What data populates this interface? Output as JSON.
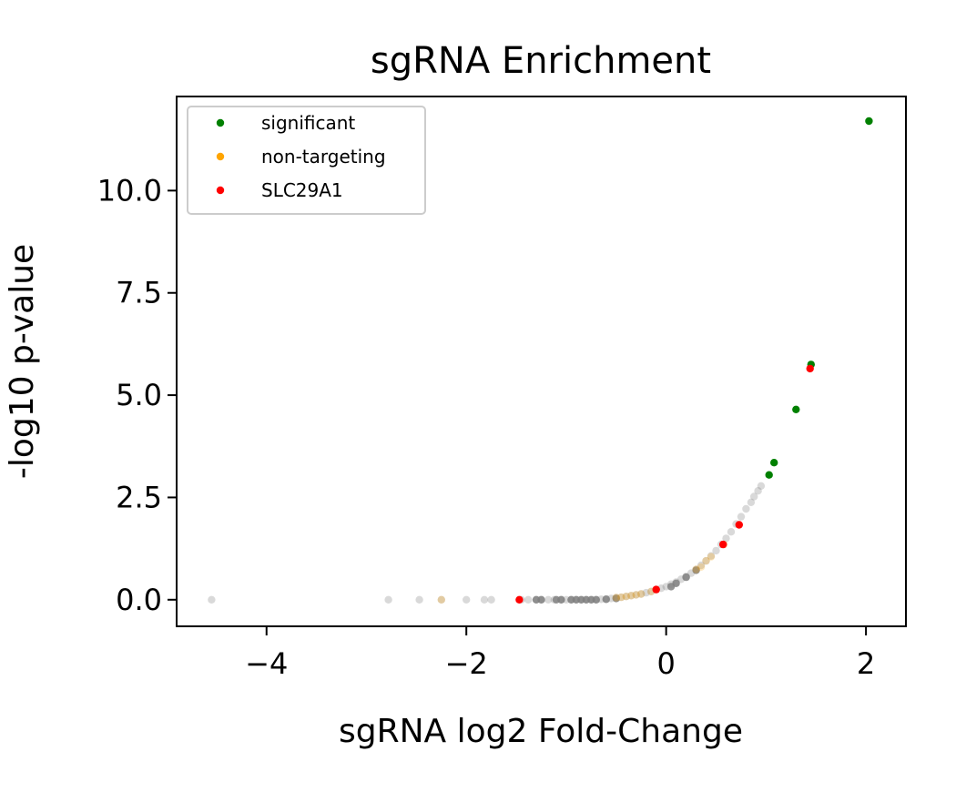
{
  "chart_data": {
    "type": "scatter",
    "title": "sgRNA Enrichment",
    "xlabel": "sgRNA log2 Fold-Change",
    "ylabel": "-log10 p-value",
    "xlim": [
      -4.9,
      2.4
    ],
    "ylim": [
      -0.65,
      12.3
    ],
    "xticks": [
      -4,
      -2,
      0,
      2
    ],
    "xtick_labels": [
      "−4",
      "−2",
      "0",
      "2"
    ],
    "yticks": [
      0.0,
      2.5,
      5.0,
      7.5,
      10.0
    ],
    "ytick_labels": [
      "0.0",
      "2.5",
      "5.0",
      "7.5",
      "10.0"
    ],
    "grid": false,
    "legend": {
      "position": "top-left"
    },
    "series": [
      {
        "name": "",
        "color": "#808080",
        "opacity": 0.3,
        "x": [
          -4.55,
          -2.78,
          -2.47,
          -2.25,
          -2.0,
          -1.82,
          -1.75,
          -1.45,
          -1.38,
          -1.3,
          -1.25,
          -1.18,
          -1.12,
          -1.05,
          -1.0,
          -0.95,
          -0.9,
          -0.85,
          -0.8,
          -0.75,
          -0.7,
          -0.65,
          -0.6,
          -0.55,
          -0.5,
          -0.45,
          -0.4,
          -0.35,
          -0.3,
          -0.25,
          -0.2,
          -0.15,
          -0.1,
          -0.05,
          0.0,
          0.05,
          0.1,
          0.15,
          0.2,
          0.25,
          0.3,
          0.35,
          0.4,
          0.45,
          0.5,
          0.55,
          0.6,
          0.65,
          0.7,
          0.75,
          0.8,
          0.85,
          0.88,
          0.92,
          0.95
        ],
        "y": [
          0.0,
          0.0,
          0.0,
          0.0,
          0.0,
          0.0,
          0.0,
          0.0,
          0.0,
          0.0,
          0.0,
          0.0,
          0.0,
          0.0,
          0.0,
          0.0,
          0.0,
          0.0,
          0.0,
          0.0,
          0.0,
          0.01,
          0.02,
          0.03,
          0.05,
          0.06,
          0.08,
          0.1,
          0.12,
          0.14,
          0.17,
          0.2,
          0.25,
          0.28,
          0.32,
          0.38,
          0.43,
          0.5,
          0.57,
          0.65,
          0.74,
          0.84,
          0.95,
          1.07,
          1.2,
          1.35,
          1.5,
          1.66,
          1.85,
          2.03,
          2.22,
          2.38,
          2.52,
          2.66,
          2.78
        ]
      },
      {
        "name": "",
        "color": "#808080",
        "opacity": 0.85,
        "x": [
          -1.3,
          -1.25,
          -1.1,
          -1.05,
          -0.95,
          -0.9,
          -0.85,
          -0.8,
          -0.75,
          -0.7,
          -0.6,
          -0.5,
          0.05,
          0.1,
          0.2,
          0.3
        ],
        "y": [
          0.0,
          0.0,
          0.0,
          0.0,
          0.0,
          0.0,
          0.0,
          0.0,
          0.0,
          0.0,
          0.01,
          0.03,
          0.32,
          0.4,
          0.55,
          0.72
        ]
      },
      {
        "name": "significant",
        "color": "#008000",
        "opacity": 1,
        "x": [
          2.03,
          1.45,
          1.3,
          1.08,
          1.03
        ],
        "y": [
          11.7,
          5.75,
          4.65,
          3.35,
          3.05
        ]
      },
      {
        "name": "non-targeting",
        "color": "#ffa500",
        "opacity": 0.25,
        "x": [
          -2.25,
          -0.5,
          -0.45,
          -0.4,
          -0.35,
          -0.3,
          -0.25,
          -0.15,
          0.3,
          0.35,
          0.4,
          0.45,
          0.58
        ],
        "y": [
          0.0,
          0.05,
          0.06,
          0.08,
          0.1,
          0.12,
          0.14,
          0.2,
          0.74,
          0.8,
          0.95,
          1.05,
          1.35
        ]
      },
      {
        "name": "SLC29A1",
        "color": "#ff0000",
        "opacity": 1,
        "x": [
          -1.47,
          -0.1,
          0.57,
          0.73,
          1.44
        ],
        "y": [
          0.0,
          0.25,
          1.35,
          1.83,
          5.65
        ]
      }
    ]
  }
}
